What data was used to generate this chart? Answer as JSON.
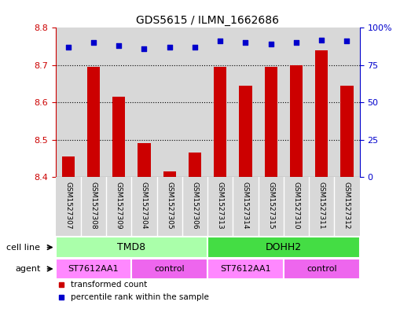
{
  "title": "GDS5615 / ILMN_1662686",
  "samples": [
    "GSM1527307",
    "GSM1527308",
    "GSM1527309",
    "GSM1527304",
    "GSM1527305",
    "GSM1527306",
    "GSM1527313",
    "GSM1527314",
    "GSM1527315",
    "GSM1527310",
    "GSM1527311",
    "GSM1527312"
  ],
  "bar_values": [
    8.455,
    8.695,
    8.615,
    8.49,
    8.415,
    8.465,
    8.695,
    8.645,
    8.695,
    8.7,
    8.74,
    8.645
  ],
  "percentile_values": [
    87,
    90,
    88,
    86,
    87,
    87,
    91,
    90,
    89,
    90,
    92,
    91
  ],
  "bar_color": "#cc0000",
  "dot_color": "#0000cc",
  "ylim_left": [
    8.4,
    8.8
  ],
  "ylim_right": [
    0,
    100
  ],
  "yticks_left": [
    8.4,
    8.5,
    8.6,
    8.7,
    8.8
  ],
  "yticks_right": [
    0,
    25,
    50,
    75,
    100
  ],
  "cell_line_groups": [
    {
      "label": "TMD8",
      "start": 0,
      "end": 6,
      "color": "#aaffaa"
    },
    {
      "label": "DOHH2",
      "start": 6,
      "end": 12,
      "color": "#44dd44"
    }
  ],
  "agent_groups": [
    {
      "label": "ST7612AA1",
      "start": 0,
      "end": 3,
      "color": "#ff88ff"
    },
    {
      "label": "control",
      "start": 3,
      "end": 6,
      "color": "#ee66ee"
    },
    {
      "label": "ST7612AA1",
      "start": 6,
      "end": 9,
      "color": "#ff88ff"
    },
    {
      "label": "control",
      "start": 9,
      "end": 12,
      "color": "#ee66ee"
    }
  ],
  "legend_items": [
    {
      "label": "transformed count",
      "color": "#cc0000"
    },
    {
      "label": "percentile rank within the sample",
      "color": "#0000cc"
    }
  ],
  "cell_line_label": "cell line",
  "agent_label": "agent",
  "bar_width": 0.5,
  "col_bg_color": "#d8d8d8",
  "left_axis_color": "#cc0000",
  "right_axis_color": "#0000cc",
  "grid_yticks": [
    8.5,
    8.6,
    8.7
  ]
}
